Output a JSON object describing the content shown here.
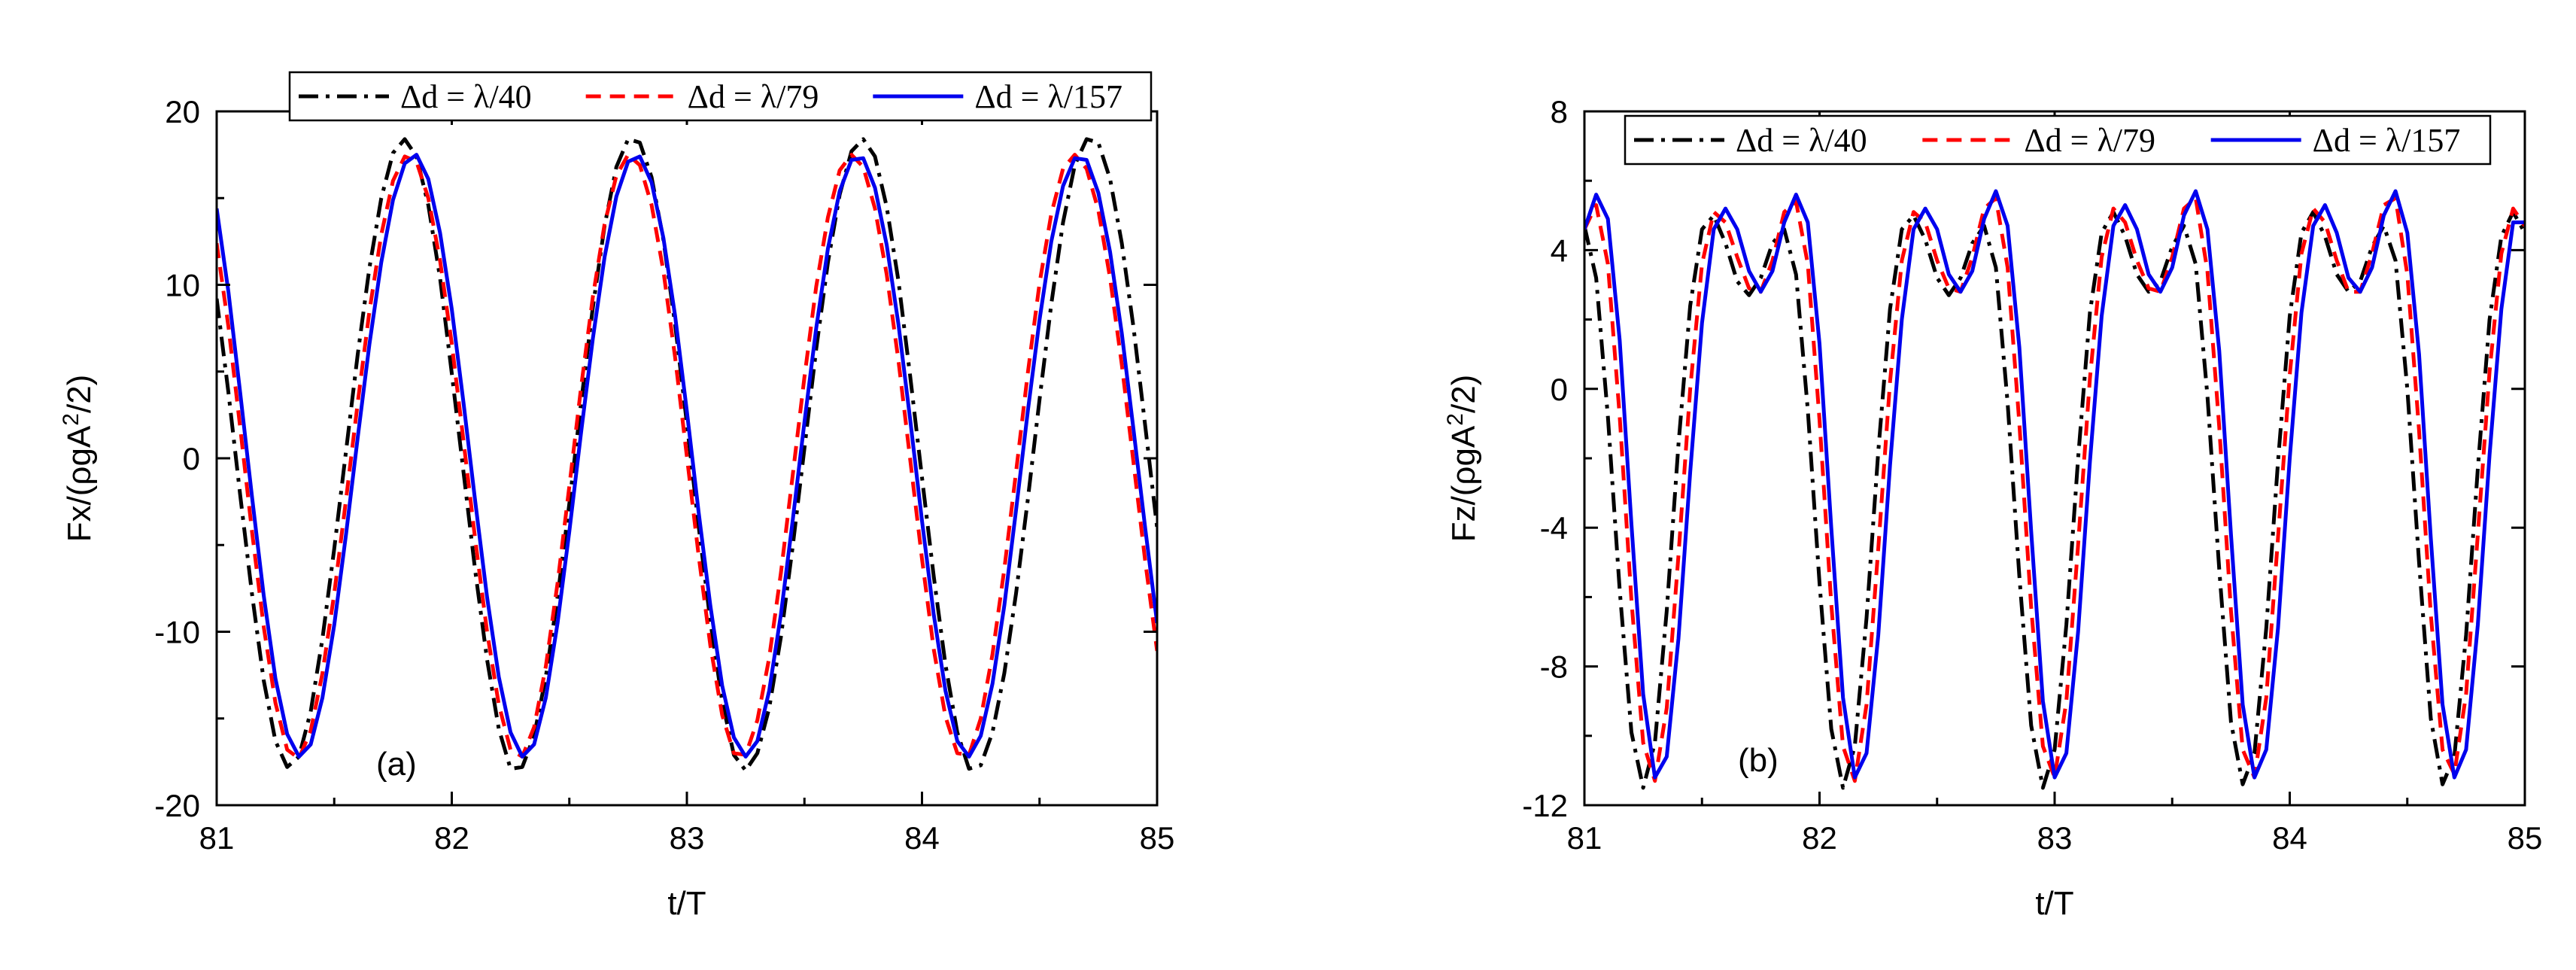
{
  "chart_data": [
    {
      "type": "line",
      "panel_label": "(a)",
      "xlabel": "t/T",
      "ylabel": {
        "base": "Fx/(ρgA",
        "sup": "2",
        "tail": "/2)"
      },
      "xlim": [
        81,
        85
      ],
      "ylim": [
        -20,
        20
      ],
      "xticks": [
        81,
        82,
        83,
        84,
        85
      ],
      "yticks": [
        -20,
        -10,
        0,
        10,
        20
      ],
      "legend_position": "top",
      "series": [
        {
          "name": "Δd = λ/40",
          "color": "#000000",
          "dash": "dashdot",
          "x": [
            81.0,
            81.05,
            81.1,
            81.15,
            81.2,
            81.25,
            81.3,
            81.35,
            81.4,
            81.45,
            81.5,
            81.55,
            81.6,
            81.65,
            81.7,
            81.75,
            81.8,
            81.85,
            81.9,
            81.95,
            82.0,
            82.05,
            82.1,
            82.15,
            82.2,
            82.25,
            82.3,
            82.35,
            82.4,
            82.45,
            82.5,
            82.55,
            82.6,
            82.65,
            82.7,
            82.75,
            82.8,
            82.85,
            82.9,
            82.95,
            83.0,
            83.05,
            83.1,
            83.15,
            83.2,
            83.25,
            83.3,
            83.35,
            83.4,
            83.45,
            83.5,
            83.55,
            83.6,
            83.65,
            83.7,
            83.75,
            83.8,
            83.85,
            83.9,
            83.95,
            84.0,
            84.05,
            84.1,
            84.15,
            84.2,
            84.25,
            84.3,
            84.35,
            84.4,
            84.45,
            84.5,
            84.55,
            84.6,
            84.65,
            84.7,
            84.75,
            84.8,
            84.85,
            84.9,
            84.95,
            85.0
          ],
          "y": [
            9.2,
            3.8,
            -2.1,
            -7.8,
            -12.8,
            -16.3,
            -17.8,
            -17.2,
            -14.6,
            -10.4,
            -5.2,
            0.4,
            6.0,
            11.0,
            15.0,
            17.6,
            18.4,
            17.4,
            14.6,
            10.4,
            4.9,
            -0.8,
            -6.5,
            -11.6,
            -15.6,
            -17.9,
            -17.8,
            -16.0,
            -12.6,
            -8.0,
            -2.6,
            3.2,
            8.7,
            13.4,
            16.8,
            18.4,
            18.2,
            16.2,
            12.6,
            7.7,
            2.0,
            -3.9,
            -9.4,
            -14.0,
            -17.1,
            -18.0,
            -17.0,
            -14.4,
            -10.3,
            -5.1,
            0.6,
            6.3,
            11.3,
            15.2,
            17.7,
            18.4,
            17.4,
            14.5,
            10.2,
            4.7,
            -1.1,
            -6.8,
            -11.9,
            -15.8,
            -17.9,
            -17.7,
            -15.8,
            -12.4,
            -7.8,
            -2.4,
            3.4,
            8.9,
            13.6,
            16.9,
            18.4,
            18.2,
            16.1,
            12.4,
            7.5,
            1.8,
            -4.0
          ]
        },
        {
          "name": "Δd = λ/79",
          "color": "#ff0000",
          "dash": "dash",
          "x": [
            81.0,
            81.05,
            81.1,
            81.15,
            81.2,
            81.25,
            81.3,
            81.35,
            81.4,
            81.45,
            81.5,
            81.55,
            81.6,
            81.65,
            81.7,
            81.75,
            81.8,
            81.85,
            81.9,
            81.95,
            82.0,
            82.05,
            82.1,
            82.15,
            82.2,
            82.25,
            82.3,
            82.35,
            82.4,
            82.45,
            82.5,
            82.55,
            82.6,
            82.65,
            82.7,
            82.75,
            82.8,
            82.85,
            82.9,
            82.95,
            83.0,
            83.05,
            83.1,
            83.15,
            83.2,
            83.25,
            83.3,
            83.35,
            83.4,
            83.45,
            83.5,
            83.55,
            83.6,
            83.65,
            83.7,
            83.75,
            83.8,
            83.85,
            83.9,
            83.95,
            84.0,
            84.05,
            84.1,
            84.15,
            84.2,
            84.25,
            84.3,
            84.35,
            84.4,
            84.45,
            84.5,
            84.55,
            84.6,
            84.65,
            84.7,
            84.75,
            84.8,
            84.85,
            84.9,
            84.95,
            85.0
          ],
          "y": [
            12.4,
            7.6,
            1.8,
            -4.2,
            -9.7,
            -14.1,
            -16.8,
            -17.3,
            -15.7,
            -12.4,
            -7.8,
            -2.4,
            3.2,
            8.5,
            12.9,
            16.0,
            17.4,
            17.1,
            15.0,
            11.4,
            6.6,
            1.0,
            -4.7,
            -10.0,
            -14.2,
            -16.8,
            -17.2,
            -15.5,
            -12.0,
            -7.2,
            -1.6,
            4.1,
            9.3,
            13.5,
            16.3,
            17.5,
            16.9,
            14.6,
            10.8,
            5.8,
            0.1,
            -5.6,
            -10.8,
            -14.8,
            -17.0,
            -17.1,
            -15.1,
            -11.5,
            -6.6,
            -1.0,
            4.7,
            9.9,
            13.9,
            16.6,
            17.5,
            16.8,
            14.4,
            10.6,
            5.6,
            -0.1,
            -5.8,
            -11.0,
            -14.9,
            -17.0,
            -17.1,
            -15.0,
            -11.3,
            -6.4,
            -0.8,
            4.9,
            10.1,
            14.1,
            16.7,
            17.5,
            16.7,
            14.3,
            10.4,
            5.4,
            -0.3,
            -6.0,
            -11.1
          ]
        },
        {
          "name": "Δd = λ/157",
          "color": "#0000ee",
          "dash": "solid",
          "x": [
            81.0,
            81.05,
            81.1,
            81.15,
            81.2,
            81.25,
            81.3,
            81.35,
            81.4,
            81.45,
            81.5,
            81.55,
            81.6,
            81.65,
            81.7,
            81.75,
            81.8,
            81.85,
            81.9,
            81.95,
            82.0,
            82.05,
            82.1,
            82.15,
            82.2,
            82.25,
            82.3,
            82.35,
            82.4,
            82.45,
            82.5,
            82.55,
            82.6,
            82.65,
            82.7,
            82.75,
            82.8,
            82.85,
            82.9,
            82.95,
            83.0,
            83.05,
            83.1,
            83.15,
            83.2,
            83.25,
            83.3,
            83.35,
            83.4,
            83.45,
            83.5,
            83.55,
            83.6,
            83.65,
            83.7,
            83.75,
            83.8,
            83.85,
            83.9,
            83.95,
            84.0,
            84.05,
            84.1,
            84.15,
            84.2,
            84.25,
            84.3,
            84.35,
            84.4,
            84.45,
            84.5,
            84.55,
            84.6,
            84.65,
            84.7,
            84.75,
            84.8,
            84.85,
            84.9,
            84.95,
            85.0
          ],
          "y": [
            14.4,
            9.6,
            3.8,
            -2.2,
            -7.9,
            -12.7,
            -15.9,
            -17.2,
            -16.5,
            -13.8,
            -9.6,
            -4.4,
            1.2,
            6.6,
            11.3,
            14.9,
            17.0,
            17.5,
            16.1,
            13.0,
            8.6,
            3.2,
            -2.5,
            -8.0,
            -12.6,
            -15.8,
            -17.2,
            -16.5,
            -13.8,
            -9.5,
            -4.2,
            1.5,
            6.9,
            11.6,
            15.1,
            17.1,
            17.4,
            15.9,
            12.7,
            8.2,
            2.7,
            -3.1,
            -8.5,
            -13.1,
            -16.1,
            -17.2,
            -16.3,
            -13.4,
            -9.0,
            -3.6,
            2.1,
            7.5,
            12.1,
            15.4,
            17.2,
            17.3,
            15.6,
            12.3,
            7.7,
            2.2,
            -3.6,
            -9.0,
            -13.4,
            -16.3,
            -17.2,
            -16.0,
            -13.0,
            -8.5,
            -3.0,
            2.7,
            8.0,
            12.5,
            15.7,
            17.3,
            17.2,
            15.3,
            11.9,
            7.2,
            1.6,
            -4.1,
            -9.5
          ]
        }
      ]
    },
    {
      "type": "line",
      "panel_label": "(b)",
      "xlabel": "t/T",
      "ylabel": {
        "base": "Fz/(ρgA",
        "sup": "2",
        "tail": "/2)"
      },
      "xlim": [
        81,
        85
      ],
      "ylim": [
        -12,
        8
      ],
      "xticks": [
        81,
        82,
        83,
        84,
        85
      ],
      "yticks": [
        -12,
        -8,
        -4,
        0,
        4,
        8
      ],
      "legend_position": "top",
      "series": [
        {
          "name": "Δd = λ/40",
          "color": "#000000",
          "dash": "dashdot",
          "x": [
            81.0,
            81.05,
            81.1,
            81.15,
            81.2,
            81.25,
            81.3,
            81.35,
            81.4,
            81.45,
            81.5,
            81.55,
            81.6,
            81.65,
            81.7,
            81.75,
            81.8,
            81.85,
            81.9,
            81.95,
            82.0,
            82.05,
            82.1,
            82.15,
            82.2,
            82.25,
            82.3,
            82.35,
            82.4,
            82.45,
            82.5,
            82.55,
            82.6,
            82.65,
            82.7,
            82.75,
            82.8,
            82.85,
            82.9,
            82.95,
            83.0,
            83.05,
            83.1,
            83.15,
            83.2,
            83.25,
            83.3,
            83.35,
            83.4,
            83.45,
            83.5,
            83.55,
            83.6,
            83.65,
            83.7,
            83.75,
            83.8,
            83.85,
            83.9,
            83.95,
            84.0,
            84.05,
            84.1,
            84.15,
            84.2,
            84.25,
            84.3,
            84.35,
            84.4,
            84.45,
            84.5,
            84.55,
            84.6,
            84.65,
            84.7,
            84.75,
            84.8,
            84.85,
            84.9,
            84.95,
            85.0
          ],
          "y": [
            4.7,
            3.2,
            -0.8,
            -5.8,
            -9.9,
            -11.5,
            -10.2,
            -6.4,
            -1.6,
            2.4,
            4.6,
            5.0,
            4.2,
            3.1,
            2.7,
            3.2,
            4.2,
            4.6,
            3.3,
            -0.6,
            -5.6,
            -9.8,
            -11.5,
            -10.3,
            -6.6,
            -1.8,
            2.3,
            4.6,
            5.0,
            4.3,
            3.2,
            2.7,
            3.2,
            4.2,
            4.7,
            3.5,
            -0.4,
            -5.4,
            -9.7,
            -11.5,
            -10.4,
            -6.8,
            -2.0,
            2.2,
            4.5,
            5.1,
            4.4,
            3.3,
            2.8,
            3.1,
            4.1,
            4.7,
            3.6,
            -0.2,
            -5.2,
            -9.6,
            -11.4,
            -10.5,
            -6.9,
            -2.1,
            2.1,
            4.5,
            5.1,
            4.4,
            3.3,
            2.8,
            3.1,
            4.1,
            4.7,
            3.7,
            0.0,
            -5.0,
            -9.5,
            -11.4,
            -10.6,
            -7.1,
            -2.3,
            2.0,
            4.4,
            5.1,
            4.5
          ]
        },
        {
          "name": "Δd = λ/79",
          "color": "#ff0000",
          "dash": "dash",
          "x": [
            81.0,
            81.05,
            81.1,
            81.15,
            81.2,
            81.25,
            81.3,
            81.35,
            81.4,
            81.45,
            81.5,
            81.55,
            81.6,
            81.65,
            81.7,
            81.75,
            81.8,
            81.85,
            81.9,
            81.95,
            82.0,
            82.05,
            82.1,
            82.15,
            82.2,
            82.25,
            82.3,
            82.35,
            82.4,
            82.45,
            82.5,
            82.55,
            82.6,
            82.65,
            82.7,
            82.75,
            82.8,
            82.85,
            82.9,
            82.95,
            83.0,
            83.05,
            83.1,
            83.15,
            83.2,
            83.25,
            83.3,
            83.35,
            83.4,
            83.45,
            83.5,
            83.55,
            83.6,
            83.65,
            83.7,
            83.75,
            83.8,
            83.85,
            83.9,
            83.95,
            84.0,
            84.05,
            84.1,
            84.15,
            84.2,
            84.25,
            84.3,
            84.35,
            84.4,
            84.45,
            84.5,
            84.55,
            84.6,
            84.65,
            84.7,
            84.75,
            84.8,
            84.85,
            84.9,
            84.95,
            85.0
          ],
          "y": [
            4.6,
            5.3,
            3.6,
            -0.8,
            -6.1,
            -10.2,
            -11.3,
            -9.2,
            -4.8,
            0.0,
            3.6,
            5.1,
            4.8,
            3.8,
            2.9,
            2.8,
            3.7,
            5.1,
            5.4,
            3.6,
            -0.9,
            -6.2,
            -10.3,
            -11.3,
            -9.1,
            -4.6,
            0.2,
            3.7,
            5.1,
            4.8,
            3.7,
            2.9,
            2.8,
            3.8,
            5.2,
            5.5,
            3.5,
            -1.0,
            -6.3,
            -10.3,
            -11.2,
            -9.0,
            -4.5,
            0.3,
            3.8,
            5.2,
            4.8,
            3.7,
            2.9,
            2.8,
            3.8,
            5.2,
            5.5,
            3.4,
            -1.1,
            -6.4,
            -10.4,
            -11.2,
            -8.9,
            -4.3,
            0.4,
            3.9,
            5.2,
            4.8,
            3.7,
            2.8,
            2.8,
            3.9,
            5.3,
            5.5,
            3.3,
            -1.2,
            -6.5,
            -10.4,
            -11.1,
            -8.8,
            -4.2,
            0.5,
            3.9,
            5.2,
            4.7
          ]
        },
        {
          "name": "Δd = λ/157",
          "color": "#0000ee",
          "dash": "solid",
          "x": [
            81.0,
            81.05,
            81.1,
            81.15,
            81.2,
            81.25,
            81.3,
            81.35,
            81.4,
            81.45,
            81.5,
            81.55,
            81.6,
            81.65,
            81.7,
            81.75,
            81.8,
            81.85,
            81.9,
            81.95,
            82.0,
            82.05,
            82.1,
            82.15,
            82.2,
            82.25,
            82.3,
            82.35,
            82.4,
            82.45,
            82.5,
            82.55,
            82.6,
            82.65,
            82.7,
            82.75,
            82.8,
            82.85,
            82.9,
            82.95,
            83.0,
            83.05,
            83.1,
            83.15,
            83.2,
            83.25,
            83.3,
            83.35,
            83.4,
            83.45,
            83.5,
            83.55,
            83.6,
            83.65,
            83.7,
            83.75,
            83.8,
            83.85,
            83.9,
            83.95,
            84.0,
            84.05,
            84.1,
            84.15,
            84.2,
            84.25,
            84.3,
            84.35,
            84.4,
            84.45,
            84.5,
            84.55,
            84.6,
            84.65,
            84.7,
            84.75,
            84.8,
            84.85,
            84.9,
            84.95,
            85.0
          ],
          "y": [
            4.6,
            5.6,
            4.9,
            1.4,
            -3.9,
            -8.8,
            -11.2,
            -10.6,
            -7.2,
            -2.4,
            1.9,
            4.6,
            5.2,
            4.6,
            3.4,
            2.8,
            3.4,
            4.8,
            5.6,
            4.8,
            1.3,
            -4.0,
            -8.9,
            -11.2,
            -10.5,
            -7.1,
            -2.2,
            2.0,
            4.6,
            5.2,
            4.6,
            3.3,
            2.8,
            3.4,
            4.9,
            5.7,
            4.7,
            1.2,
            -4.1,
            -9.0,
            -11.2,
            -10.5,
            -7.0,
            -2.1,
            2.1,
            4.7,
            5.3,
            4.6,
            3.3,
            2.8,
            3.5,
            5.0,
            5.7,
            4.6,
            1.1,
            -4.2,
            -9.1,
            -11.2,
            -10.4,
            -6.9,
            -2.0,
            2.2,
            4.7,
            5.3,
            4.5,
            3.2,
            2.8,
            3.5,
            5.0,
            5.7,
            4.5,
            1.0,
            -4.3,
            -9.1,
            -11.2,
            -10.4,
            -6.8,
            -1.9,
            2.3,
            4.8,
            4.8
          ]
        }
      ]
    }
  ]
}
